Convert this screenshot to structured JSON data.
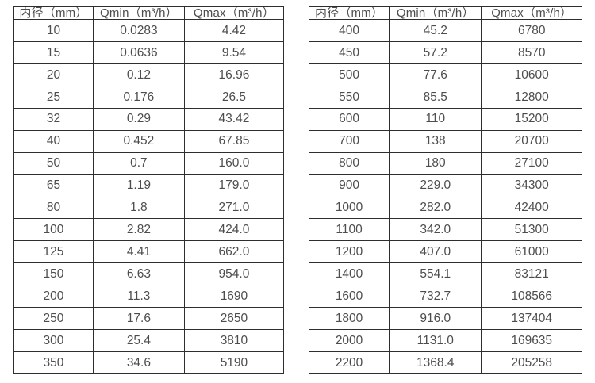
{
  "colors": {
    "background": "#ffffff",
    "text": "#4d4d4d",
    "border": "#2e2e2e"
  },
  "tables": [
    {
      "name": "flow-table-small-diameters",
      "headers": [
        "内径（mm）",
        "Qmin（m³/h）",
        "Qmax（m³/h）"
      ],
      "rows": [
        [
          "10",
          "0.0283",
          "4.42"
        ],
        [
          "15",
          "0.0636",
          "9.54"
        ],
        [
          "20",
          "0.12",
          "16.96"
        ],
        [
          "25",
          "0.176",
          "26.5"
        ],
        [
          "32",
          "0.29",
          "43.42"
        ],
        [
          "40",
          "0.452",
          "67.85"
        ],
        [
          "50",
          "0.7",
          "160.0"
        ],
        [
          "65",
          "1.19",
          "179.0"
        ],
        [
          "80",
          "1.8",
          "271.0"
        ],
        [
          "100",
          "2.82",
          "424.0"
        ],
        [
          "125",
          "4.41",
          "662.0"
        ],
        [
          "150",
          "6.63",
          "954.0"
        ],
        [
          "200",
          "11.3",
          "1690"
        ],
        [
          "250",
          "17.6",
          "2650"
        ],
        [
          "300",
          "25.4",
          "3810"
        ],
        [
          "350",
          "34.6",
          "5190"
        ]
      ]
    },
    {
      "name": "flow-table-large-diameters",
      "headers": [
        "内径（mm）",
        "Qmin（m³/h）",
        "Qmax（m³/h）"
      ],
      "rows": [
        [
          "400",
          "45.2",
          "6780"
        ],
        [
          "450",
          "57.2",
          "8570"
        ],
        [
          "500",
          "77.6",
          "10600"
        ],
        [
          "550",
          "85.5",
          "12800"
        ],
        [
          "600",
          "110",
          "15200"
        ],
        [
          "700",
          "138",
          "20700"
        ],
        [
          "800",
          "180",
          "27100"
        ],
        [
          "900",
          "229.0",
          "34300"
        ],
        [
          "1000",
          "282.0",
          "42400"
        ],
        [
          "1100",
          "342.0",
          "51300"
        ],
        [
          "1200",
          "407.0",
          "61000"
        ],
        [
          "1400",
          "554.1",
          "83121"
        ],
        [
          "1600",
          "732.7",
          "108566"
        ],
        [
          "1800",
          "916.0",
          "137404"
        ],
        [
          "2000",
          "1131.0",
          "169635"
        ],
        [
          "2200",
          "1368.4",
          "205258"
        ]
      ]
    }
  ]
}
